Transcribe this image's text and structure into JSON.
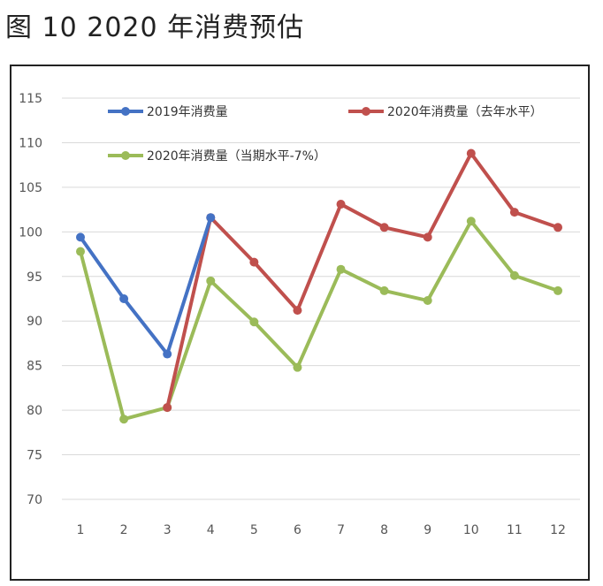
{
  "figure": {
    "title": "图 10 2020 年消费预估"
  },
  "chart_data": {
    "type": "line",
    "title": "",
    "xlabel": "",
    "ylabel": "",
    "x": [
      1,
      2,
      3,
      4,
      5,
      6,
      7,
      8,
      9,
      10,
      11,
      12
    ],
    "ylim": [
      70,
      115
    ],
    "yticks": [
      70,
      75,
      80,
      85,
      90,
      95,
      100,
      105,
      110,
      115
    ],
    "grid": true,
    "legend": "top",
    "series": [
      {
        "name": "2019年消费量",
        "color": "#4472c4",
        "values": [
          99.4,
          92.5,
          86.3,
          101.6,
          null,
          null,
          null,
          null,
          null,
          null,
          null,
          null
        ]
      },
      {
        "name": "2020年消费量（去年水平）",
        "color": "#c0504d",
        "values": [
          null,
          null,
          80.3,
          101.6,
          96.6,
          91.2,
          103.1,
          100.5,
          99.4,
          108.8,
          102.2,
          100.5
        ]
      },
      {
        "name": "2020年消费量（当期水平-7%）",
        "color": "#9bbb59",
        "values": [
          97.8,
          79.0,
          80.3,
          94.5,
          89.9,
          84.8,
          95.8,
          93.4,
          92.3,
          101.2,
          95.1,
          93.4
        ]
      }
    ]
  }
}
